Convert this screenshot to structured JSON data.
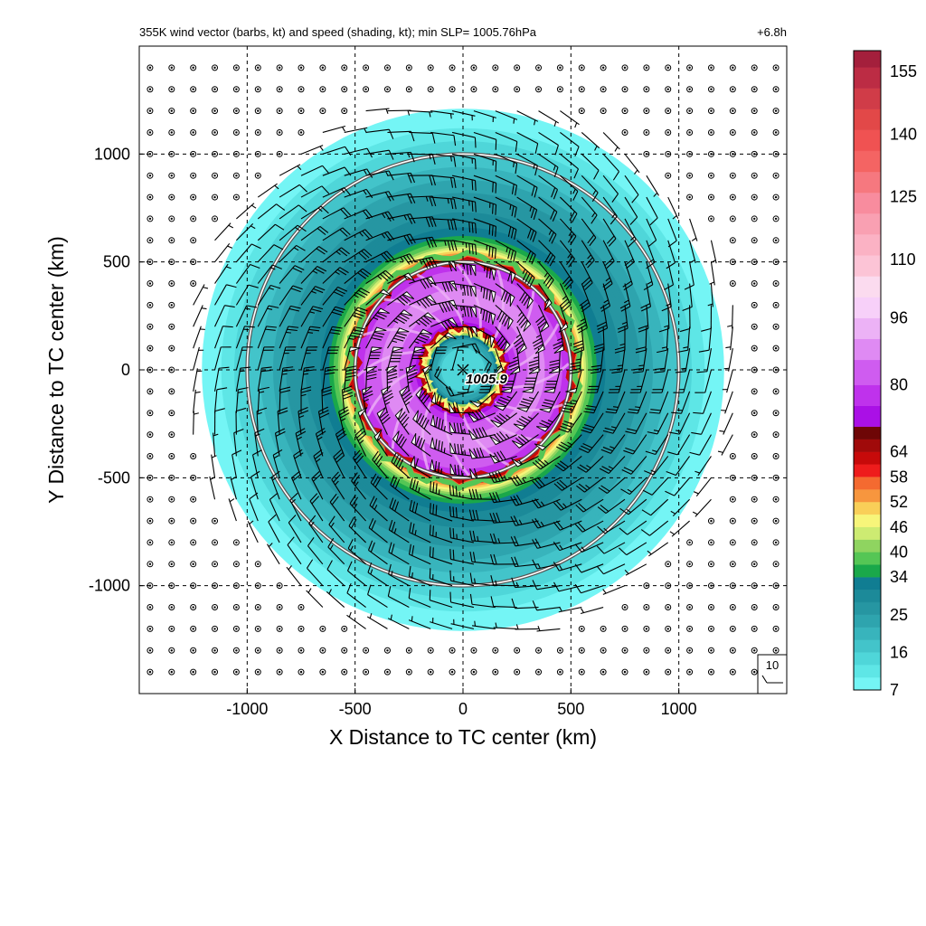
{
  "chart_data": {
    "type": "heatmap",
    "title": "355K wind vector (barbs, kt) and speed (shading, kt); min SLP= 1005.76hPa",
    "time_label": "+6.8h",
    "xlabel": "X Distance to TC center (km)",
    "ylabel": "Y Distance to TC center (km)",
    "xlim": [
      -1500,
      1500
    ],
    "ylim": [
      -1500,
      1500
    ],
    "x_ticks": [
      -1000,
      -500,
      0,
      500,
      1000
    ],
    "y_ticks": [
      1000,
      500,
      0,
      -500,
      -1000
    ],
    "x_tick_labels": [
      "-1000",
      "-500",
      "0",
      "500",
      "1000"
    ],
    "y_tick_labels": [
      "1000",
      "500",
      "0",
      "-500",
      "-1000"
    ],
    "grid": true,
    "center_marker": {
      "x": 0,
      "y": 0,
      "label": "1005.9"
    },
    "range_rings_km": [
      500,
      1000
    ],
    "reference_barb": {
      "label": "10",
      "speed_kt": 10
    },
    "colorbar": {
      "min": 7,
      "max": 160,
      "tick_labels": [
        "155",
        "140",
        "125",
        "110",
        "96",
        "80",
        "64",
        "58",
        "52",
        "46",
        "40",
        "34",
        "25",
        "16",
        "7"
      ],
      "tick_values": [
        155,
        140,
        125,
        110,
        96,
        80,
        64,
        58,
        52,
        46,
        40,
        34,
        25,
        16,
        7
      ],
      "segments": [
        {
          "lo": 7,
          "hi": 10,
          "color": "#74f5f5"
        },
        {
          "lo": 10,
          "hi": 13,
          "color": "#5ee6e6"
        },
        {
          "lo": 13,
          "hi": 16,
          "color": "#4fd6d9"
        },
        {
          "lo": 16,
          "hi": 19,
          "color": "#43c4ca"
        },
        {
          "lo": 19,
          "hi": 22,
          "color": "#38b4bc"
        },
        {
          "lo": 22,
          "hi": 25,
          "color": "#2ea4ae"
        },
        {
          "lo": 25,
          "hi": 28,
          "color": "#2696a2"
        },
        {
          "lo": 28,
          "hi": 31,
          "color": "#1c8a99"
        },
        {
          "lo": 31,
          "hi": 34,
          "color": "#107d92"
        },
        {
          "lo": 34,
          "hi": 37,
          "color": "#1aa84a"
        },
        {
          "lo": 37,
          "hi": 40,
          "color": "#55c655"
        },
        {
          "lo": 40,
          "hi": 43,
          "color": "#8fd460"
        },
        {
          "lo": 43,
          "hi": 46,
          "color": "#cdeb72"
        },
        {
          "lo": 46,
          "hi": 49,
          "color": "#f7f57a"
        },
        {
          "lo": 49,
          "hi": 52,
          "color": "#f9cf58"
        },
        {
          "lo": 52,
          "hi": 55,
          "color": "#f7963e"
        },
        {
          "lo": 55,
          "hi": 58,
          "color": "#f46a30"
        },
        {
          "lo": 58,
          "hi": 61,
          "color": "#ee1c1c"
        },
        {
          "lo": 61,
          "hi": 64,
          "color": "#c70a0a"
        },
        {
          "lo": 64,
          "hi": 67,
          "color": "#a00a0a"
        },
        {
          "lo": 67,
          "hi": 70,
          "color": "#6e0606"
        },
        {
          "lo": 70,
          "hi": 75,
          "color": "#aa10e6"
        },
        {
          "lo": 75,
          "hi": 80,
          "color": "#bf32ec"
        },
        {
          "lo": 80,
          "hi": 86,
          "color": "#cf5cf0"
        },
        {
          "lo": 86,
          "hi": 91,
          "color": "#df8af3"
        },
        {
          "lo": 91,
          "hi": 96,
          "color": "#ecb2f6"
        },
        {
          "lo": 96,
          "hi": 101,
          "color": "#f7d0f9"
        },
        {
          "lo": 101,
          "hi": 106,
          "color": "#fbdbef"
        },
        {
          "lo": 106,
          "hi": 111,
          "color": "#fcc4d6"
        },
        {
          "lo": 111,
          "hi": 116,
          "color": "#fbb2c4"
        },
        {
          "lo": 116,
          "hi": 121,
          "color": "#f9a0b2"
        },
        {
          "lo": 121,
          "hi": 126,
          "color": "#f88c9e"
        },
        {
          "lo": 126,
          "hi": 131,
          "color": "#f6787f"
        },
        {
          "lo": 131,
          "hi": 136,
          "color": "#f46463"
        },
        {
          "lo": 136,
          "hi": 141,
          "color": "#f05252"
        },
        {
          "lo": 141,
          "hi": 146,
          "color": "#e24848"
        },
        {
          "lo": 146,
          "hi": 151,
          "color": "#d03c48"
        },
        {
          "lo": 151,
          "hi": 156,
          "color": "#bc2c44"
        },
        {
          "lo": 156,
          "hi": 160,
          "color": "#a41f3c"
        }
      ]
    },
    "wind_field": {
      "profile_radius_km": [
        0,
        100,
        150,
        200,
        260,
        300,
        340,
        380,
        420,
        460,
        500,
        540,
        580,
        620,
        660,
        700,
        760,
        820,
        880,
        940,
        1000,
        1060,
        1120,
        1180,
        1240
      ],
      "profile_speed_kt": [
        12,
        16,
        28,
        70,
        82,
        86,
        88,
        86,
        83,
        80,
        74,
        52,
        40,
        34,
        31,
        29,
        27,
        25,
        22,
        19,
        16,
        13,
        10,
        8,
        6
      ],
      "gridded_speed_kt": [
        [
          3,
          3,
          3,
          5,
          5,
          5,
          5,
          5,
          5,
          5,
          5,
          5,
          3,
          3,
          3
        ],
        [
          3,
          5,
          5,
          5,
          10,
          10,
          10,
          10,
          10,
          10,
          10,
          5,
          5,
          5,
          3
        ],
        [
          3,
          5,
          10,
          10,
          15,
          20,
          20,
          20,
          20,
          20,
          15,
          10,
          10,
          5,
          3
        ],
        [
          5,
          5,
          10,
          15,
          25,
          30,
          35,
          35,
          35,
          30,
          25,
          15,
          10,
          5,
          5
        ],
        [
          5,
          10,
          15,
          25,
          35,
          70,
          80,
          85,
          80,
          70,
          35,
          25,
          15,
          10,
          5
        ],
        [
          5,
          10,
          20,
          30,
          70,
          85,
          80,
          30,
          80,
          85,
          70,
          30,
          20,
          10,
          5
        ],
        [
          5,
          10,
          20,
          35,
          80,
          80,
          20,
          12,
          20,
          80,
          80,
          35,
          20,
          10,
          5
        ],
        [
          5,
          10,
          20,
          35,
          85,
          30,
          12,
          10,
          12,
          30,
          85,
          35,
          20,
          10,
          5
        ],
        [
          5,
          10,
          20,
          35,
          80,
          80,
          20,
          12,
          20,
          80,
          80,
          35,
          20,
          10,
          5
        ],
        [
          5,
          10,
          20,
          30,
          70,
          85,
          80,
          30,
          80,
          85,
          70,
          30,
          20,
          10,
          5
        ],
        [
          5,
          10,
          15,
          25,
          35,
          70,
          80,
          85,
          80,
          70,
          35,
          25,
          15,
          10,
          5
        ],
        [
          5,
          5,
          10,
          15,
          25,
          30,
          35,
          35,
          35,
          30,
          25,
          15,
          10,
          5,
          5
        ],
        [
          3,
          5,
          10,
          10,
          15,
          20,
          20,
          20,
          20,
          20,
          15,
          10,
          10,
          5,
          3
        ],
        [
          3,
          5,
          5,
          5,
          10,
          10,
          10,
          10,
          10,
          10,
          10,
          5,
          5,
          5,
          3
        ],
        [
          3,
          3,
          3,
          5,
          5,
          5,
          5,
          5,
          5,
          5,
          5,
          5,
          3,
          3,
          3
        ]
      ],
      "rotation": "counterclockwise",
      "inflow_angle_deg": 15
    }
  }
}
